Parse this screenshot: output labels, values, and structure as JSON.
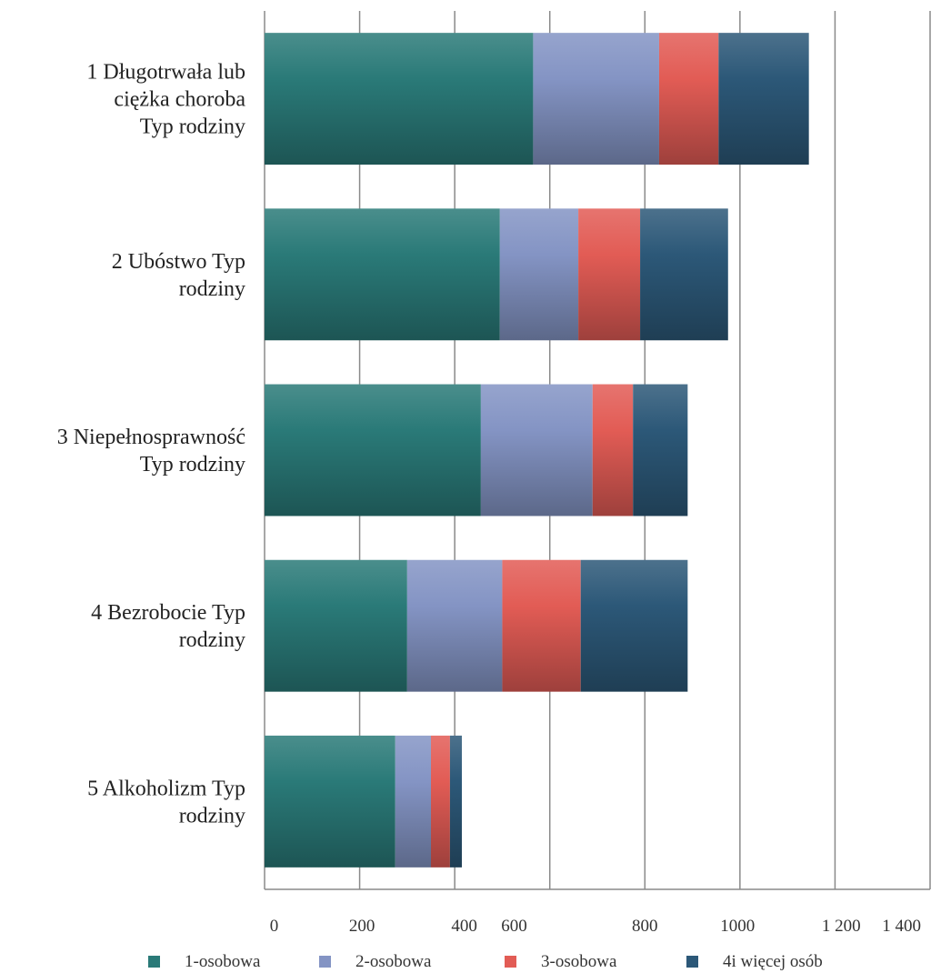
{
  "chart_data": {
    "type": "bar",
    "orientation": "horizontal",
    "stacked": true,
    "title": "",
    "xlabel": "",
    "ylabel": "",
    "categories": [
      [
        "1 Długotrwała lub",
        "ciężka choroba",
        "Typ rodziny"
      ],
      [
        "2 Ubóstwo Typ",
        "rodziny"
      ],
      [
        "3 Niepełnosprawność",
        "Typ rodziny"
      ],
      [
        "4 Bezrobocie Typ",
        "rodziny"
      ],
      [
        "5 Alkoholizm Typ",
        "rodziny"
      ]
    ],
    "series": [
      {
        "name": "1-osobowa",
        "color": "#2a7a78",
        "values": [
          565,
          495,
          455,
          300,
          275
        ]
      },
      {
        "name": "2-osobowa",
        "color": "#8494c4",
        "values": [
          265,
          165,
          235,
          200,
          75
        ]
      },
      {
        "name": "3-osobowa",
        "color": "#e25c55",
        "values": [
          125,
          130,
          85,
          165,
          40
        ]
      },
      {
        "name": "4i więcej osób",
        "color": "#2c5878",
        "values": [
          190,
          185,
          115,
          225,
          25
        ]
      }
    ],
    "xlim": [
      0,
      1400
    ],
    "gridlines": [
      0,
      200,
      400,
      600,
      800,
      1000,
      1200,
      1400
    ],
    "tick_labels": [
      {
        "value": 20,
        "label": "0"
      },
      {
        "value": 205,
        "label": "200"
      },
      {
        "value": 420,
        "label": "400"
      },
      {
        "value": 525,
        "label": "600"
      },
      {
        "value": 800,
        "label": "800"
      },
      {
        "value": 995,
        "label": "1000"
      },
      {
        "value": 1213,
        "label": "1 200"
      },
      {
        "value": 1340,
        "label": "1 400"
      }
    ],
    "grid": true,
    "legend_position": "bottom"
  }
}
